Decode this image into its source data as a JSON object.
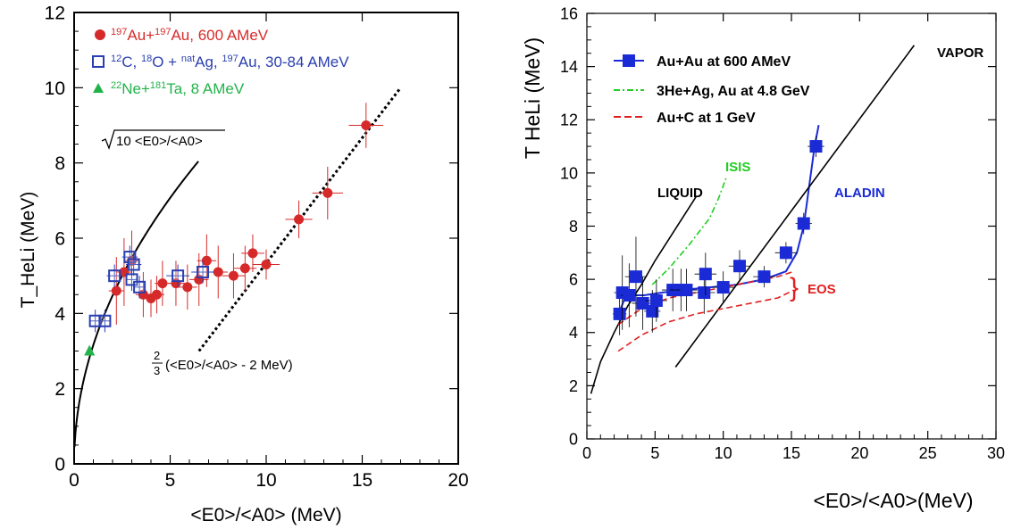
{
  "chart_data": [
    {
      "type": "scatter",
      "xlabel": "<E0>/<A0> (MeV)",
      "ylabel": "T_HeLi (MeV)",
      "xlim": [
        0,
        20
      ],
      "ylim": [
        0,
        12
      ],
      "xticks": [
        0,
        5,
        10,
        15,
        20
      ],
      "yticks": [
        0,
        2,
        4,
        6,
        8,
        10,
        12
      ],
      "grid": false,
      "legend_position": "top-left",
      "series": [
        {
          "name": "197Au+197Au, 600 AMeV",
          "marker": "filled-circle",
          "color": "#d62a2a",
          "points": [
            {
              "x": 2.2,
              "y": 4.6,
              "ex": 0.4,
              "ey": 0.9
            },
            {
              "x": 2.6,
              "y": 5.1,
              "ex": 0.4,
              "ey": 0.9
            },
            {
              "x": 3.0,
              "y": 5.4,
              "ex": 0.4,
              "ey": 0.8
            },
            {
              "x": 3.6,
              "y": 4.5,
              "ex": 0.4,
              "ey": 0.6
            },
            {
              "x": 4.0,
              "y": 4.4,
              "ex": 0.4,
              "ey": 0.5
            },
            {
              "x": 4.3,
              "y": 4.5,
              "ex": 0.4,
              "ey": 0.5
            },
            {
              "x": 4.6,
              "y": 4.8,
              "ex": 0.4,
              "ey": 0.6
            },
            {
              "x": 5.3,
              "y": 4.8,
              "ex": 0.5,
              "ey": 0.6
            },
            {
              "x": 5.9,
              "y": 4.7,
              "ex": 0.5,
              "ey": 0.6
            },
            {
              "x": 6.5,
              "y": 4.9,
              "ex": 0.5,
              "ey": 0.7
            },
            {
              "x": 6.9,
              "y": 5.4,
              "ex": 0.5,
              "ey": 0.7
            },
            {
              "x": 7.5,
              "y": 5.1,
              "ex": 0.5,
              "ey": 0.7
            },
            {
              "x": 8.3,
              "y": 5.0,
              "ex": 0.6,
              "ey": 0.6
            },
            {
              "x": 8.9,
              "y": 5.2,
              "ex": 0.6,
              "ey": 0.6
            },
            {
              "x": 9.3,
              "y": 5.6,
              "ex": 0.6,
              "ey": 0.5
            },
            {
              "x": 10.0,
              "y": 5.3,
              "ex": 0.7,
              "ey": 0.4
            },
            {
              "x": 11.7,
              "y": 6.5,
              "ex": 0.7,
              "ey": 0.5
            },
            {
              "x": 13.2,
              "y": 7.2,
              "ex": 0.8,
              "ey": 0.7
            },
            {
              "x": 15.2,
              "y": 9.0,
              "ex": 0.9,
              "ey": 0.6
            }
          ]
        },
        {
          "name": "12C, 18O + natAg, 197Au, 30-84 AMeV",
          "marker": "open-square",
          "color": "#2a3fb0",
          "points": [
            {
              "x": 1.1,
              "y": 3.8,
              "ex": 0.3,
              "ey": 0.3
            },
            {
              "x": 1.6,
              "y": 3.8,
              "ex": 0.3,
              "ey": 0.3
            },
            {
              "x": 2.1,
              "y": 5.0,
              "ex": 0.4,
              "ey": 0.3
            },
            {
              "x": 2.9,
              "y": 5.5,
              "ex": 0.4,
              "ey": 0.3
            },
            {
              "x": 3.1,
              "y": 5.3,
              "ex": 0.4,
              "ey": 0.3
            },
            {
              "x": 3.0,
              "y": 4.9,
              "ex": 0.3,
              "ey": 0.3
            },
            {
              "x": 3.4,
              "y": 4.7,
              "ex": 0.3,
              "ey": 0.3
            },
            {
              "x": 5.4,
              "y": 5.0,
              "ex": 0.6,
              "ey": 0.3
            },
            {
              "x": 6.7,
              "y": 5.1,
              "ex": 0.6,
              "ey": 0.3
            }
          ]
        },
        {
          "name": "22Ne+181Ta, 8 AMeV",
          "marker": "filled-triangle",
          "color": "#22b24a",
          "points": [
            {
              "x": 0.8,
              "y": 3.0
            }
          ]
        }
      ],
      "curves": [
        {
          "label": "√10 <E0>/<A0>",
          "function": "sqrt10x",
          "x_range": [
            0,
            6.5
          ],
          "style": "solid",
          "color": "#000000"
        },
        {
          "label": "2/3(<E0>/<A0> - 2 MeV)",
          "function": "linear_2_3_minus_2",
          "x_range": [
            6.5,
            17
          ],
          "style": "dotted",
          "color": "#000000"
        }
      ],
      "legend": [
        {
          "pre": "",
          "sup1": "197",
          "mid1": "Au+",
          "sup2": "197",
          "mid2": "Au, 600 AMeV"
        },
        {
          "pre": "",
          "sup1": "12",
          "mid1": "C, ",
          "sup2": "18",
          "mid2": "O + ",
          "sup3": "nat",
          "mid3": "Ag, ",
          "sup4": "197",
          "mid4": "Au, 30-84 AMeV"
        },
        {
          "pre": "",
          "sup1": "22",
          "mid1": "Ne+",
          "sup2": "181",
          "mid2": "Ta, 8 AMeV"
        }
      ],
      "annotations": {
        "sqrt_label": "10 <E0>/<A0>",
        "frac_num": "2",
        "frac_den": "3",
        "linear_label": "(<E0>/<A0> - 2 MeV)"
      }
    },
    {
      "type": "scatter",
      "xlabel": "<E0>/<A0>(MeV)",
      "ylabel": "T HeLi (MeV)",
      "xlim": [
        0,
        30
      ],
      "ylim": [
        0,
        16
      ],
      "xticks": [
        0,
        5,
        10,
        15,
        20,
        25,
        30
      ],
      "yticks": [
        0,
        2,
        4,
        6,
        8,
        10,
        12,
        14,
        16
      ],
      "grid": false,
      "legend_position": "top-left",
      "legend": [
        {
          "label": "Au+Au at 600 AMeV",
          "style": "line-square",
          "color": "#1a2bd6"
        },
        {
          "label": "3He+Ag, Au at 4.8 GeV",
          "style": "dash-dot",
          "color": "#22cc22"
        },
        {
          "label": "Au+C at 1 GeV",
          "style": "dashed",
          "color": "#e02020"
        }
      ],
      "series": [
        {
          "name": "Au+Au at 600 AMeV",
          "marker": "filled-square",
          "color": "#1a2bd6",
          "points": [
            {
              "x": 2.4,
              "y": 4.7,
              "ex": 0.5,
              "ey": 0.8
            },
            {
              "x": 2.6,
              "y": 5.5,
              "ex": 0.6,
              "ey": 1.4
            },
            {
              "x": 3.1,
              "y": 5.4,
              "ex": 0.6,
              "ey": 1.2
            },
            {
              "x": 3.6,
              "y": 6.1,
              "ex": 0.8,
              "ey": 1.5
            },
            {
              "x": 4.1,
              "y": 5.1,
              "ex": 0.8,
              "ey": 1.0
            },
            {
              "x": 4.8,
              "y": 4.8,
              "ex": 0.6,
              "ey": 0.8
            },
            {
              "x": 5.1,
              "y": 5.2,
              "ex": 0.8,
              "ey": 0.8
            },
            {
              "x": 6.3,
              "y": 5.6,
              "ex": 0.8,
              "ey": 0.8
            },
            {
              "x": 6.9,
              "y": 5.6,
              "ex": 0.8,
              "ey": 0.8
            },
            {
              "x": 7.3,
              "y": 5.6,
              "ex": 0.8,
              "ey": 0.8
            },
            {
              "x": 8.6,
              "y": 5.5,
              "ex": 0.8,
              "ey": 0.8
            },
            {
              "x": 8.7,
              "y": 6.2,
              "ex": 0.8,
              "ey": 0.8
            },
            {
              "x": 10.0,
              "y": 5.7,
              "ex": 0.8,
              "ey": 0.6
            },
            {
              "x": 11.2,
              "y": 6.5,
              "ex": 0.8,
              "ey": 0.6
            },
            {
              "x": 13.0,
              "y": 6.1,
              "ex": 0.8,
              "ey": 0.4
            },
            {
              "x": 14.6,
              "y": 7.0,
              "ex": 0.8,
              "ey": 0.4
            },
            {
              "x": 15.9,
              "y": 8.1,
              "ex": 0.6,
              "ey": 0.4
            },
            {
              "x": 16.8,
              "y": 11.0,
              "ex": 0.6,
              "ey": 0.4
            }
          ]
        }
      ],
      "curves": [
        {
          "name": "ALADIN",
          "color": "#1a2bd6",
          "style": "solid",
          "points": [
            [
              2.4,
              4.8
            ],
            [
              2.8,
              5.3
            ],
            [
              3.4,
              5.4
            ],
            [
              4.2,
              5.4
            ],
            [
              5.5,
              5.5
            ],
            [
              7,
              5.6
            ],
            [
              9,
              5.7
            ],
            [
              11,
              5.8
            ],
            [
              13,
              6.0
            ],
            [
              14.6,
              6.3
            ],
            [
              15.4,
              7.0
            ],
            [
              15.9,
              8.0
            ],
            [
              16.3,
              9.5
            ],
            [
              16.7,
              11.0
            ],
            [
              17.0,
              11.8
            ]
          ]
        },
        {
          "name": "LIQUID",
          "color": "#000000",
          "style": "solid",
          "points": [
            [
              0.3,
              1.7
            ],
            [
              1,
              2.9
            ],
            [
              2,
              4.0
            ],
            [
              3,
              5.0
            ],
            [
              4,
              5.8
            ],
            [
              5,
              6.7
            ],
            [
              6,
              7.5
            ],
            [
              7,
              8.3
            ],
            [
              8,
              9.1
            ]
          ]
        },
        {
          "name": "VAPOR",
          "color": "#000000",
          "style": "solid",
          "points": [
            [
              6.5,
              2.7
            ],
            [
              24,
              14.8
            ]
          ]
        },
        {
          "name": "ISIS",
          "color": "#22cc22",
          "style": "dash-dot",
          "points": [
            [
              4.8,
              5.8
            ],
            [
              6,
              6.4
            ],
            [
              7.5,
              7.3
            ],
            [
              9,
              8.3
            ],
            [
              9.7,
              9.1
            ],
            [
              10.2,
              9.8
            ]
          ]
        },
        {
          "name": "EOS upper",
          "color": "#e02020",
          "style": "dashed",
          "points": [
            [
              2.3,
              4.3
            ],
            [
              4,
              4.9
            ],
            [
              6,
              5.3
            ],
            [
              8,
              5.5
            ],
            [
              10,
              5.7
            ],
            [
              12,
              5.9
            ],
            [
              14,
              6.1
            ],
            [
              15.2,
              6.3
            ]
          ]
        },
        {
          "name": "EOS lower",
          "color": "#e02020",
          "style": "dashed",
          "points": [
            [
              2.3,
              3.3
            ],
            [
              4,
              3.9
            ],
            [
              6,
              4.4
            ],
            [
              8,
              4.7
            ],
            [
              10,
              4.9
            ],
            [
              12,
              5.1
            ],
            [
              14,
              5.3
            ],
            [
              15.2,
              5.6
            ]
          ]
        }
      ],
      "annotations": {
        "liquid": "LIQUID",
        "vapor": "VAPOR",
        "isis": "ISIS",
        "aladin": "ALADIN",
        "eos": "EOS",
        "brace": "}"
      }
    }
  ]
}
